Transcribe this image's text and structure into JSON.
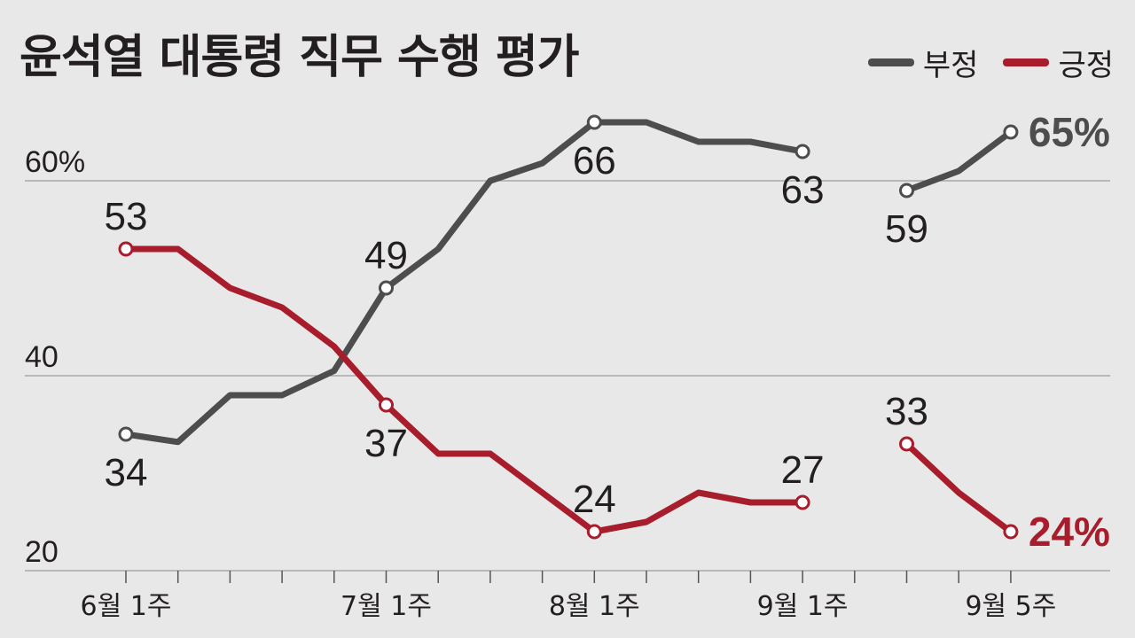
{
  "chart_data": {
    "type": "line",
    "title": "윤석열 대통령 직무 수행 평가",
    "ylim": [
      20,
      70
    ],
    "yticks": [
      {
        "value": 20,
        "label": "20"
      },
      {
        "value": 40,
        "label": "40"
      },
      {
        "value": 60,
        "label": "60%"
      }
    ],
    "x_count": 18,
    "xticks": [
      {
        "index": 0,
        "label": "6월 1주"
      },
      {
        "index": 5,
        "label": "7월 1주"
      },
      {
        "index": 9,
        "label": "8월 1주"
      },
      {
        "index": 13,
        "label": "9월 1주"
      },
      {
        "index": 17,
        "label": "9월 5주"
      }
    ],
    "grid": true,
    "legend_position": "top-right",
    "series": [
      {
        "name": "부정",
        "color": "#4d4d4d",
        "segments": [
          [
            [
              0,
              34
            ],
            [
              1,
              33.2
            ],
            [
              2,
              38
            ],
            [
              3,
              38
            ],
            [
              4,
              40.5
            ],
            [
              5,
              49
            ],
            [
              6,
              53
            ],
            [
              7,
              60
            ],
            [
              8,
              61.8
            ],
            [
              9,
              66
            ],
            [
              10,
              66
            ],
            [
              11,
              64
            ],
            [
              12,
              64
            ],
            [
              13,
              63
            ]
          ],
          [
            [
              15,
              59
            ],
            [
              16,
              61
            ],
            [
              17,
              65
            ]
          ]
        ],
        "labels": [
          {
            "index": 0,
            "value": 34,
            "text": "34",
            "pos": "below"
          },
          {
            "index": 5,
            "value": 49,
            "text": "49",
            "pos": "above"
          },
          {
            "index": 9,
            "value": 66,
            "text": "66",
            "pos": "below"
          },
          {
            "index": 13,
            "value": 63,
            "text": "63",
            "pos": "below"
          },
          {
            "index": 15,
            "value": 59,
            "text": "59",
            "pos": "below"
          },
          {
            "index": 17,
            "value": 65,
            "text": "65%",
            "pos": "right"
          }
        ]
      },
      {
        "name": "긍정",
        "color": "#a81d2b",
        "segments": [
          [
            [
              0,
              53
            ],
            [
              1,
              53
            ],
            [
              2,
              49
            ],
            [
              3,
              47
            ],
            [
              4,
              43
            ],
            [
              5,
              37
            ],
            [
              6,
              32
            ],
            [
              7,
              32
            ],
            [
              8,
              28
            ],
            [
              9,
              24
            ],
            [
              10,
              25
            ],
            [
              11,
              28
            ],
            [
              12,
              27
            ],
            [
              13,
              27
            ]
          ],
          [
            [
              15,
              33
            ],
            [
              16,
              28
            ],
            [
              17,
              24
            ]
          ]
        ],
        "labels": [
          {
            "index": 0,
            "value": 53,
            "text": "53",
            "pos": "above"
          },
          {
            "index": 5,
            "value": 37,
            "text": "37",
            "pos": "below"
          },
          {
            "index": 9,
            "value": 24,
            "text": "24",
            "pos": "above"
          },
          {
            "index": 13,
            "value": 27,
            "text": "27",
            "pos": "above"
          },
          {
            "index": 15,
            "value": 33,
            "text": "33",
            "pos": "above"
          },
          {
            "index": 17,
            "value": 24,
            "text": "24%",
            "pos": "right"
          }
        ]
      }
    ]
  }
}
